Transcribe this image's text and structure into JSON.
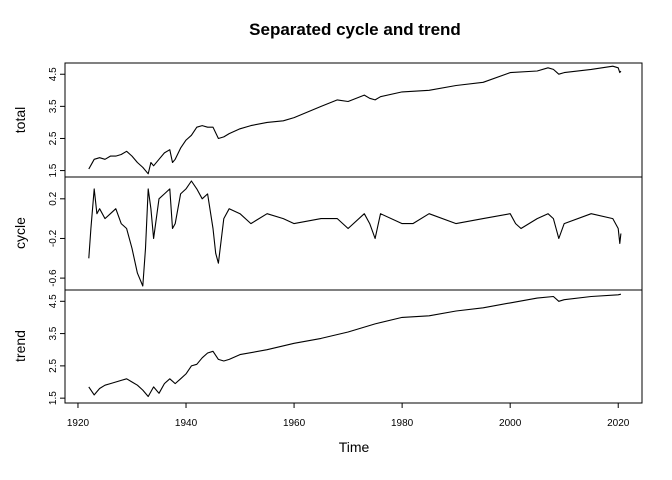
{
  "chart_data": {
    "type": "line",
    "title": "Separated cycle and trend",
    "xlabel": "Time",
    "x_ticks": [
      1920,
      1940,
      1960,
      1980,
      2000,
      2020
    ],
    "xlim": [
      1917.6,
      2024.4
    ],
    "grid": false,
    "legend": "none",
    "panels": [
      {
        "name": "total",
        "ylabel": "total",
        "ylim": [
          1.3,
          4.85
        ],
        "y_ticks": [
          1.5,
          2.5,
          3.5,
          4.5
        ],
        "y_tick_labels": [
          "1.5",
          "2.5",
          "3.5",
          "4.5"
        ],
        "x": [
          1922,
          1922.5,
          1923,
          1924,
          1925,
          1926,
          1927,
          1928,
          1929,
          1930,
          1931,
          1932,
          1933,
          1933.5,
          1934,
          1935,
          1936,
          1937,
          1937.5,
          1938,
          1939,
          1940,
          1941,
          1942,
          1943,
          1944,
          1945,
          1946,
          1947,
          1948,
          1950,
          1952,
          1955,
          1958,
          1960,
          1965,
          1968,
          1970,
          1973,
          1974,
          1975,
          1976,
          1980,
          1985,
          1990,
          1995,
          2000,
          2005,
          2007,
          2008,
          2009,
          2010,
          2015,
          2019,
          2020,
          2020.3,
          2020.5
        ],
        "values": [
          1.55,
          1.7,
          1.85,
          1.9,
          1.85,
          1.95,
          1.95,
          2.0,
          2.1,
          1.95,
          1.75,
          1.6,
          1.4,
          1.75,
          1.65,
          1.85,
          2.05,
          2.15,
          1.75,
          1.85,
          2.2,
          2.45,
          2.6,
          2.85,
          2.9,
          2.85,
          2.85,
          2.5,
          2.55,
          2.65,
          2.8,
          2.9,
          3.0,
          3.05,
          3.15,
          3.5,
          3.7,
          3.65,
          3.85,
          3.75,
          3.7,
          3.8,
          3.95,
          4.0,
          4.15,
          4.25,
          4.55,
          4.6,
          4.7,
          4.65,
          4.5,
          4.55,
          4.65,
          4.75,
          4.7,
          4.55,
          4.6
        ]
      },
      {
        "name": "cycle",
        "ylabel": "cycle",
        "ylim": [
          -0.72,
          0.42
        ],
        "y_ticks": [
          -0.6,
          -0.2,
          0.2
        ],
        "y_tick_labels": [
          "-0.6",
          "-0.2",
          "0.2"
        ],
        "x": [
          1922,
          1922.4,
          1923,
          1923.5,
          1924,
          1925,
          1926,
          1927,
          1928,
          1929,
          1930,
          1931,
          1932,
          1932.5,
          1933,
          1933.5,
          1934,
          1935,
          1936,
          1937,
          1937.5,
          1938,
          1939,
          1940,
          1941,
          1942,
          1943,
          1944,
          1945,
          1945.5,
          1946,
          1947,
          1948,
          1950,
          1952,
          1955,
          1958,
          1960,
          1965,
          1968,
          1970,
          1973,
          1974,
          1975,
          1976,
          1980,
          1982,
          1985,
          1990,
          1995,
          2000,
          2001,
          2002,
          2005,
          2007,
          2008,
          2009,
          2010,
          2015,
          2019,
          2020,
          2020.3,
          2020.5
        ],
        "values": [
          -0.4,
          -0.1,
          0.3,
          0.05,
          0.1,
          0.0,
          0.05,
          0.1,
          -0.05,
          -0.1,
          -0.3,
          -0.55,
          -0.68,
          -0.3,
          0.3,
          0.1,
          -0.2,
          0.2,
          0.25,
          0.3,
          -0.1,
          -0.05,
          0.25,
          0.3,
          0.38,
          0.3,
          0.2,
          0.25,
          -0.1,
          -0.35,
          -0.45,
          0.0,
          0.1,
          0.05,
          -0.05,
          0.05,
          0.0,
          -0.05,
          0.0,
          0.0,
          -0.1,
          0.05,
          -0.05,
          -0.2,
          0.05,
          -0.05,
          -0.05,
          0.05,
          -0.05,
          0.0,
          0.05,
          -0.05,
          -0.1,
          0.0,
          0.05,
          0.0,
          -0.2,
          -0.05,
          0.05,
          0.0,
          -0.1,
          -0.25,
          -0.15
        ]
      },
      {
        "name": "trend",
        "ylabel": "trend",
        "ylim": [
          1.35,
          4.85
        ],
        "y_ticks": [
          1.5,
          2.5,
          3.5,
          4.5
        ],
        "y_tick_labels": [
          "1.5",
          "2.5",
          "3.5",
          "4.5"
        ],
        "x": [
          1922,
          1923,
          1924,
          1925,
          1926,
          1927,
          1928,
          1929,
          1930,
          1931,
          1932,
          1933,
          1934,
          1935,
          1936,
          1937,
          1938,
          1939,
          1940,
          1941,
          1942,
          1943,
          1944,
          1945,
          1946,
          1947,
          1948,
          1950,
          1955,
          1960,
          1965,
          1970,
          1975,
          1980,
          1985,
          1990,
          1995,
          2000,
          2005,
          2008,
          2009,
          2010,
          2015,
          2020,
          2020.5
        ],
        "values": [
          1.85,
          1.6,
          1.8,
          1.9,
          1.95,
          2.0,
          2.05,
          2.1,
          2.0,
          1.9,
          1.75,
          1.55,
          1.85,
          1.65,
          1.95,
          2.1,
          1.95,
          2.1,
          2.25,
          2.5,
          2.55,
          2.75,
          2.9,
          2.95,
          2.7,
          2.65,
          2.7,
          2.85,
          3.0,
          3.2,
          3.35,
          3.55,
          3.8,
          4.0,
          4.05,
          4.2,
          4.3,
          4.45,
          4.6,
          4.65,
          4.5,
          4.55,
          4.65,
          4.7,
          4.72
        ]
      }
    ]
  }
}
